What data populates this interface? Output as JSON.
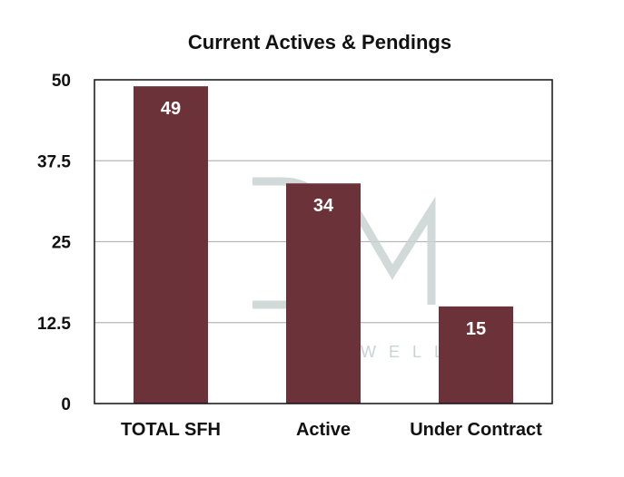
{
  "chart_data": {
    "type": "bar",
    "title": "Current Actives & Pendings",
    "categories": [
      "TOTAL SFH",
      "Active",
      "Under Contract"
    ],
    "values": [
      49,
      34,
      15
    ],
    "data_labels": [
      "49",
      "34",
      "15"
    ],
    "yticks": [
      "0",
      "12.5",
      "25",
      "37.5",
      "50"
    ],
    "ylim": [
      0,
      50
    ],
    "grid": true,
    "bar_color": "#6b3339",
    "grid_color": "#b7b7b7"
  },
  "watermark": {
    "text": "MAXWELL",
    "logo": "DM",
    "color": "#c9d3d1"
  }
}
